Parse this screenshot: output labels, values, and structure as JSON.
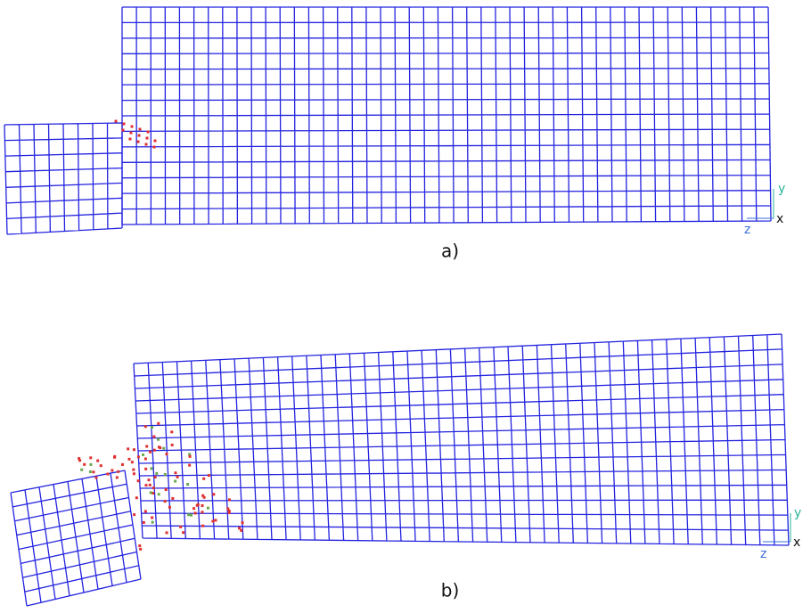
{
  "panels": [
    {
      "label": "a)",
      "axes": {
        "y": "y",
        "x": "x",
        "z": "z"
      }
    },
    {
      "label": "b)",
      "axes": {
        "y": "y",
        "x": "x",
        "z": "z"
      }
    }
  ]
}
